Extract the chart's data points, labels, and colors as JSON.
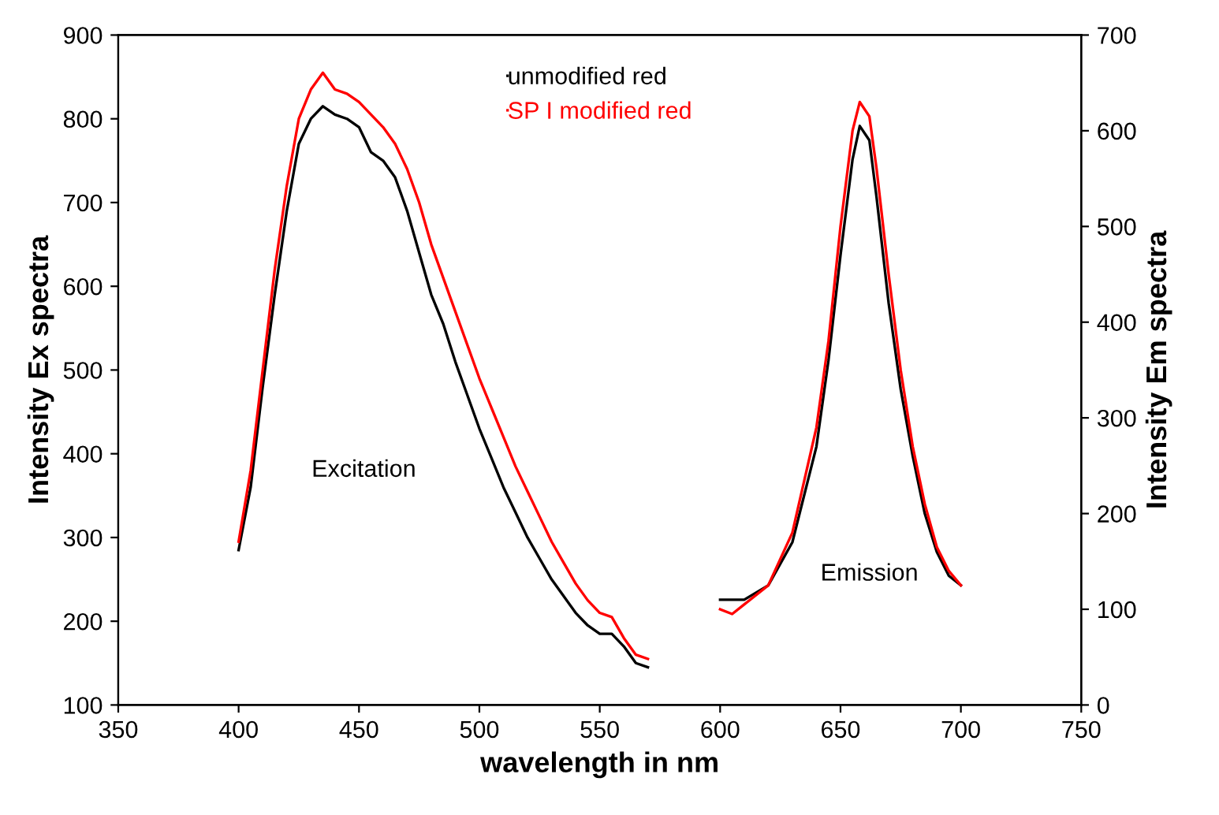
{
  "chart_data": {
    "type": "line",
    "xlabel": "wavelength in nm",
    "ylabel": "Intensity Ex spectra",
    "y2label": "Intensity Em spectra",
    "xlim": [
      350,
      750
    ],
    "xticks": [
      350,
      400,
      450,
      500,
      550,
      600,
      650,
      700,
      750
    ],
    "ylim": [
      100,
      900
    ],
    "yticks": [
      100,
      200,
      300,
      400,
      500,
      600,
      700,
      800,
      900
    ],
    "y2lim": [
      0,
      700
    ],
    "y2ticks": [
      0,
      100,
      200,
      300,
      400,
      500,
      600,
      700
    ],
    "grid": false,
    "legend": "top",
    "marker": "none",
    "line_style": "solid",
    "annotations": [
      "Excitation",
      "Emission"
    ],
    "series": [
      {
        "name": "unmodified red",
        "color": "#000000",
        "x": [
          400,
          405,
          410,
          415,
          420,
          425,
          430,
          435,
          440,
          445,
          450,
          455,
          460,
          465,
          470,
          475,
          480,
          485,
          490,
          495,
          500,
          505,
          510,
          515,
          520,
          525,
          530,
          535,
          540,
          545,
          550,
          555,
          560,
          565,
          570
        ],
        "values": [
          285,
          360,
          480,
          590,
          690,
          770,
          800,
          815,
          805,
          800,
          790,
          760,
          750,
          730,
          690,
          640,
          590,
          555,
          510,
          470,
          430,
          395,
          360,
          330,
          300,
          275,
          250,
          230,
          210,
          195,
          185,
          185,
          170,
          150,
          145
        ]
      },
      {
        "name": "SP I modified red",
        "color": "#ff0000",
        "x": [
          400,
          405,
          410,
          415,
          420,
          425,
          430,
          435,
          440,
          445,
          450,
          455,
          460,
          465,
          470,
          475,
          480,
          485,
          490,
          495,
          500,
          505,
          510,
          515,
          520,
          525,
          530,
          535,
          540,
          545,
          550,
          555,
          560,
          565,
          570
        ],
        "values": [
          295,
          380,
          500,
          620,
          720,
          800,
          835,
          855,
          835,
          830,
          820,
          805,
          790,
          770,
          740,
          700,
          650,
          610,
          570,
          530,
          490,
          455,
          420,
          385,
          355,
          325,
          295,
          270,
          245,
          225,
          210,
          205,
          180,
          160,
          155
        ]
      },
      {
        "color": "#000000",
        "axis": "y2",
        "x": [
          600,
          610,
          620,
          630,
          640,
          645,
          650,
          655,
          658,
          662,
          665,
          670,
          675,
          680,
          685,
          690,
          695,
          700
        ],
        "values": [
          110,
          110,
          125,
          170,
          270,
          360,
          470,
          570,
          605,
          590,
          530,
          420,
          330,
          260,
          200,
          160,
          135,
          125
        ]
      },
      {
        "color": "#ff0000",
        "axis": "y2",
        "x": [
          600,
          605,
          610,
          620,
          630,
          640,
          645,
          650,
          655,
          658,
          662,
          665,
          670,
          675,
          680,
          685,
          690,
          695,
          700
        ],
        "values": [
          100,
          95,
          105,
          125,
          180,
          290,
          380,
          500,
          600,
          630,
          615,
          560,
          450,
          350,
          270,
          210,
          165,
          140,
          125
        ]
      }
    ]
  }
}
